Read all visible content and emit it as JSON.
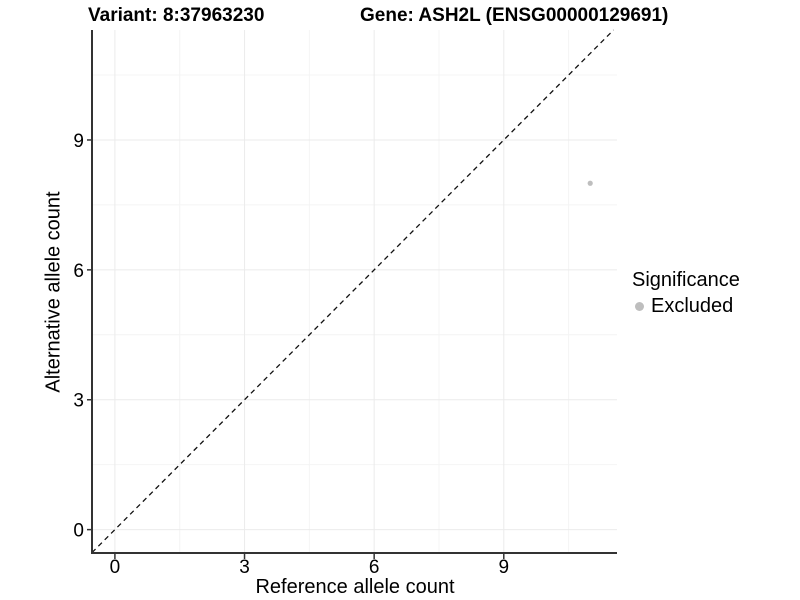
{
  "chart_data": {
    "type": "scatter",
    "title_left": "Variant: 8:37963230",
    "title_right": "Gene: ASH2L (ENSG00000129691)",
    "xlabel": "Reference allele count",
    "ylabel": "Alternative allele count",
    "xlim": [
      -0.53,
      11.62
    ],
    "ylim": [
      -0.54,
      11.54
    ],
    "x_ticks": [
      0,
      3,
      6,
      9
    ],
    "y_ticks": [
      0,
      3,
      6,
      9
    ],
    "x_minor_ticks": [
      1.5,
      4.5,
      7.5,
      10.5
    ],
    "y_minor_ticks": [
      1.5,
      4.5,
      7.5,
      10.5
    ],
    "grid": true,
    "points": [
      {
        "x": 11,
        "y": 8,
        "series": "Excluded"
      }
    ],
    "reference_line": {
      "type": "identity",
      "slope": 1,
      "intercept": 0,
      "style": "dashed"
    },
    "legend": {
      "title": "Significance",
      "position": "right",
      "items": [
        {
          "label": "Excluded",
          "color": "#bebebe"
        }
      ]
    },
    "colors": {
      "point": "#bebebe",
      "grid_major": "#ebebeb",
      "grid_minor": "#f4f4f4",
      "axis_line": "#333333",
      "tick_mark": "#333333",
      "reference_line": "#111111",
      "text": "#000000"
    }
  }
}
